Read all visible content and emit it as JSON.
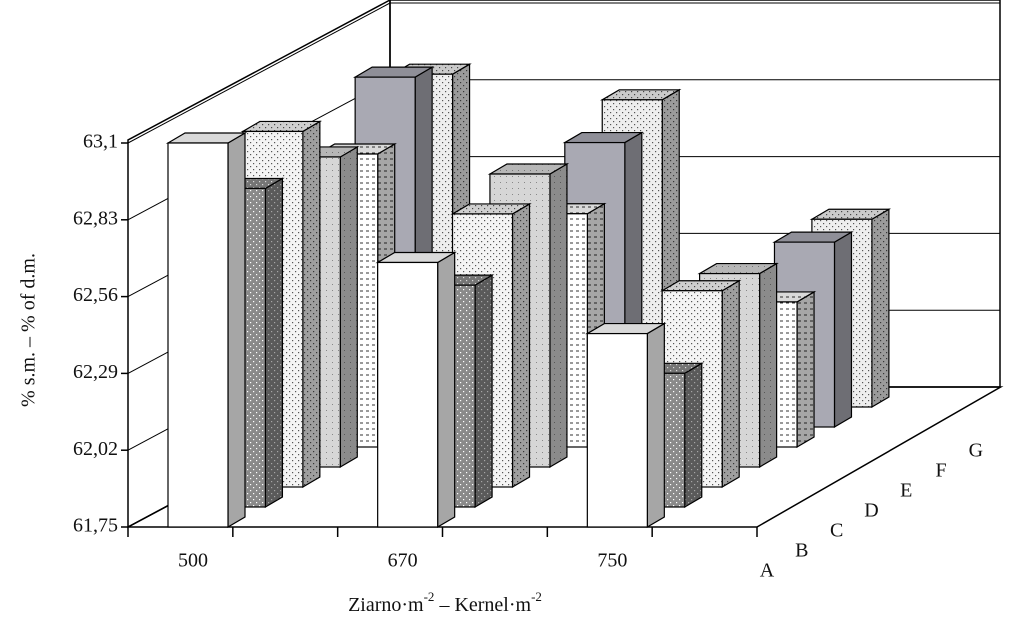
{
  "chart_data": {
    "type": "bar3d",
    "y_label": "% s.m. – % of d.m.",
    "x_label_parts": [
      "Ziarno·m",
      "-2",
      " – Kernel·m",
      "-2"
    ],
    "categories": [
      "500",
      "670",
      "750"
    ],
    "ylim": [
      61.75,
      63.1
    ],
    "yticks": [
      {
        "value": 61.75,
        "label": "61,75"
      },
      {
        "value": 62.02,
        "label": "62,02"
      },
      {
        "value": 62.29,
        "label": "62,29"
      },
      {
        "value": 62.56,
        "label": "62,56"
      },
      {
        "value": 62.83,
        "label": "62,83"
      },
      {
        "value": 63.1,
        "label": "63,1"
      }
    ],
    "grid": true,
    "series": [
      {
        "name": "A",
        "color": "#ffffff",
        "values": [
          63.1,
          62.68,
          62.43
        ]
      },
      {
        "name": "B",
        "color": "#8a8a8a",
        "values": [
          62.87,
          62.53,
          62.22
        ]
      },
      {
        "name": "C",
        "color": "#f4f4f4",
        "values": [
          63.0,
          62.71,
          62.44
        ]
      },
      {
        "name": "D",
        "color": "#d6d6d6",
        "values": [
          62.84,
          62.78,
          62.43
        ]
      },
      {
        "name": "E",
        "color": "#ffffff",
        "values": [
          62.78,
          62.57,
          62.26
        ]
      },
      {
        "name": "F",
        "color": "#a9a9b3",
        "values": [
          62.98,
          62.75,
          62.4
        ]
      },
      {
        "name": "G",
        "color": "#eeeeee",
        "values": [
          62.92,
          62.83,
          62.41
        ]
      }
    ]
  }
}
